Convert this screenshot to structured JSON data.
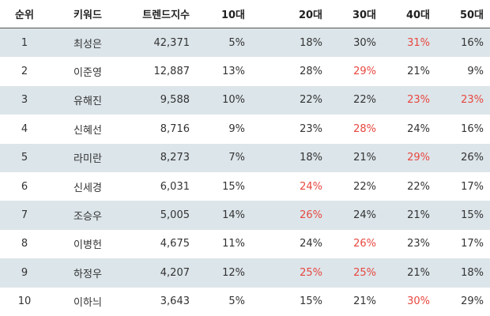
{
  "table": {
    "columns": [
      "순위",
      "키워드",
      "트렌드지수",
      "10대",
      "20대",
      "30대",
      "40대",
      "50대"
    ],
    "rows": [
      {
        "cells": [
          "1",
          "최성은",
          "42,371",
          "5%",
          "18%",
          "30%",
          "31%",
          "16%"
        ],
        "highlight": [
          6
        ]
      },
      {
        "cells": [
          "2",
          "이준영",
          "12,887",
          "13%",
          "28%",
          "29%",
          "21%",
          "9%"
        ],
        "highlight": [
          5
        ]
      },
      {
        "cells": [
          "3",
          "유해진",
          "9,588",
          "10%",
          "22%",
          "22%",
          "23%",
          "23%"
        ],
        "highlight": [
          6,
          7
        ]
      },
      {
        "cells": [
          "4",
          "신혜선",
          "8,716",
          "9%",
          "23%",
          "28%",
          "24%",
          "16%"
        ],
        "highlight": [
          5
        ]
      },
      {
        "cells": [
          "5",
          "라미란",
          "8,273",
          "7%",
          "18%",
          "21%",
          "29%",
          "26%"
        ],
        "highlight": [
          6
        ]
      },
      {
        "cells": [
          "6",
          "신세경",
          "6,031",
          "15%",
          "24%",
          "22%",
          "22%",
          "17%"
        ],
        "highlight": [
          4
        ]
      },
      {
        "cells": [
          "7",
          "조승우",
          "5,005",
          "14%",
          "26%",
          "24%",
          "21%",
          "15%"
        ],
        "highlight": [
          4
        ]
      },
      {
        "cells": [
          "8",
          "이병헌",
          "4,675",
          "11%",
          "24%",
          "26%",
          "23%",
          "17%"
        ],
        "highlight": [
          5
        ]
      },
      {
        "cells": [
          "9",
          "하정우",
          "4,207",
          "12%",
          "25%",
          "25%",
          "21%",
          "18%"
        ],
        "highlight": [
          4,
          5
        ]
      },
      {
        "cells": [
          "10",
          "이하늬",
          "3,643",
          "5%",
          "15%",
          "21%",
          "30%",
          "29%"
        ],
        "highlight": [
          6
        ]
      }
    ]
  }
}
